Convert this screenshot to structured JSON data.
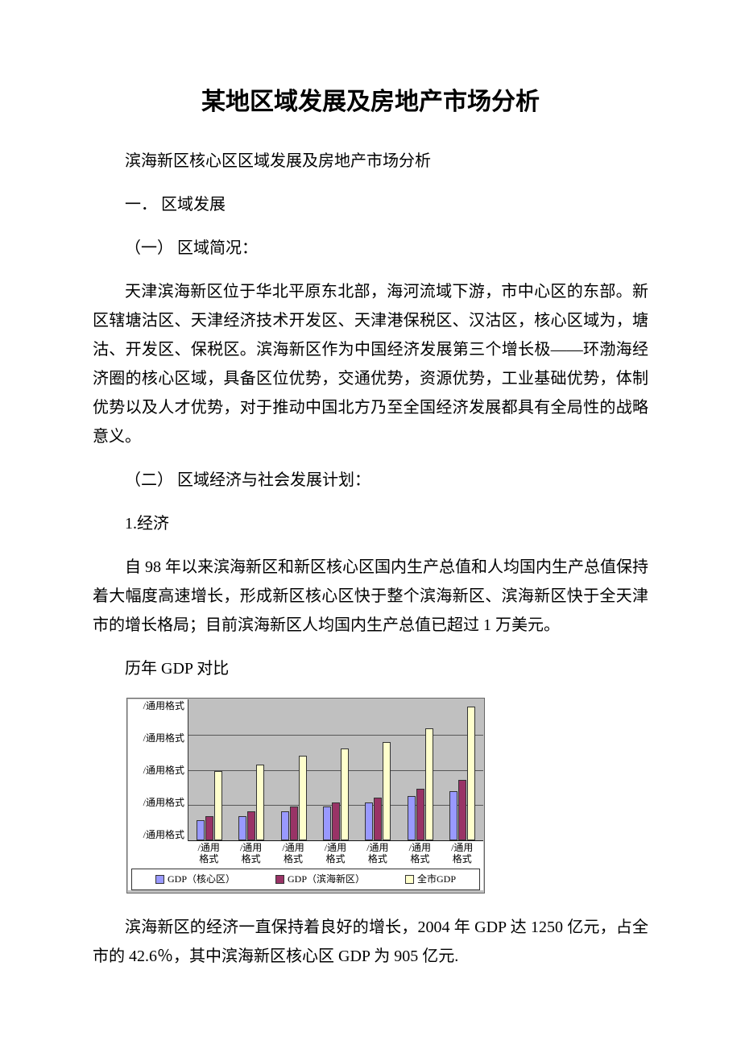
{
  "title": "某地区域发展及房地产市场分析",
  "p1": "滨海新区核心区区域发展及房地产市场分析",
  "p2": "一．  区域发展",
  "p3": "（一）  区域简况：",
  "p4": "天津滨海新区位于华北平原东北部，海河流域下游，市中心区的东部。新区辖塘沽区、天津经济技术开发区、天津港保税区、汉沽区，核心区域为，塘沽、开发区、保税区。滨海新区作为中国经济发展第三个增长极——环渤海经济圈的核心区域，具备区位优势，交通优势，资源优势，工业基础优势，体制优势以及人才优势，对于推动中国北方乃至全国经济发展都具有全局性的战略意义。",
  "p5": "（二）  区域经济与社会发展计划：",
  "p6": "1.经济",
  "p7": "自 98 年以来滨海新区和新区核心区国内生产总值和人均国内生产总值保持着大幅度高速增长，形成新区核心区快于整个滨海新区、滨海新区快于全天津市的增长格局；目前滨海新区人均国内生产总值已超过 1 万美元。",
  "p8": "历年 GDP 对比",
  "p9": "滨海新区的经济一直保持着良好的增长，2004 年 GDP 达 1250 亿元，占全市的 42.6％，其中滨海新区核心区 GDP 为 905 亿元.",
  "chart": {
    "type": "bar",
    "y_tick_label": "/通用格式",
    "y_ticks": 5,
    "x_tick_top": "/通用",
    "x_tick_bottom": "格式",
    "categories_count": 7,
    "grid_color": "#000000",
    "plot_bg": "#c0c0c0",
    "series": [
      {
        "name": "GDP（核心区）",
        "color": "#9999ff",
        "values": [
          18,
          22,
          26,
          30,
          34,
          40,
          44
        ]
      },
      {
        "name": "GDP（滨海新区）",
        "color": "#993366",
        "values": [
          22,
          26,
          30,
          34,
          38,
          46,
          54
        ]
      },
      {
        "name": "全市GDP",
        "color": "#ffffcc",
        "values": [
          62,
          68,
          76,
          82,
          88,
          100,
          120
        ]
      }
    ],
    "legend_prefix": "□",
    "font_size": 12,
    "border_color": "#666666"
  }
}
